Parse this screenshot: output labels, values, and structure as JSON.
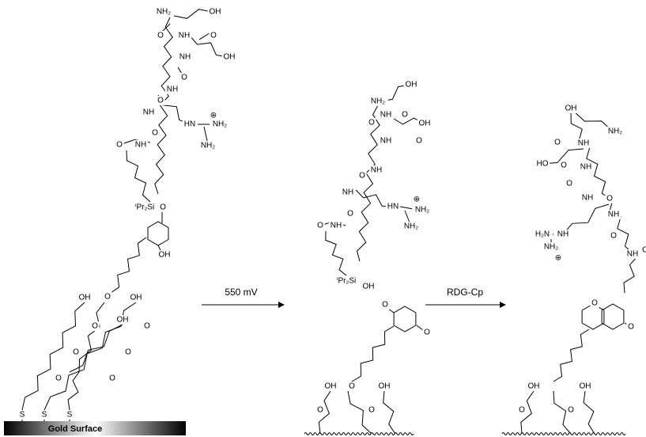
{
  "surface_label": "Gold Surface",
  "arrow_1_label": "550 mV",
  "arrow_2_label": "RDG-Cp",
  "left_labels": [
    "NH₂",
    "OH",
    "O",
    "NH",
    "O",
    "OH",
    "NH",
    "O",
    "NH",
    "O",
    "NH",
    "HN",
    "⊕",
    "NH₂",
    "O",
    "NH₂",
    "O",
    "NH",
    "ⁱPr₂Si",
    "O",
    "OH",
    "O",
    "OH",
    "OH",
    "OH",
    "O",
    "O",
    "O",
    "O",
    "O",
    "O",
    "S",
    "S",
    "S"
  ],
  "middle_labels": [
    "NH₂",
    "OH",
    "O",
    "NH",
    "O",
    "OH",
    "NH",
    "O",
    "NH",
    "O",
    "NH",
    "HN",
    "⊕",
    "NH₂",
    "O",
    "NH₂",
    "O",
    "NH",
    "ⁱPr₂Si",
    "OH",
    "O",
    "O",
    "O",
    "OH",
    "OH",
    "O",
    "O"
  ],
  "right_labels": [
    "OH",
    "NH₂",
    "O",
    "NH",
    "HO",
    "O",
    "NH",
    "O",
    "NH",
    "O",
    "NH",
    "H₂N",
    "NH",
    "NH₂",
    "⊕",
    "O",
    "NH",
    "O",
    "O",
    "O",
    "OH",
    "OH",
    "O",
    "O"
  ]
}
